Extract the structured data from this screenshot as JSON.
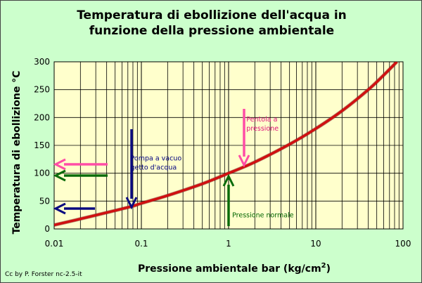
{
  "chart_data": {
    "type": "line",
    "title_lines": [
      "Temperatura di ebollizione dell'acqua in",
      "funzione della pressione ambientale"
    ],
    "xlabel_main": "Pressione ambientale bar (kg/cm",
    "xlabel_sup": "2",
    "xlabel_end": ")",
    "ylabel": "Temperatura di ebollizione °C",
    "x_scale": "log",
    "xlim": [
      0.01,
      100
    ],
    "ylim": [
      0,
      300
    ],
    "x_ticks": [
      0.01,
      0.1,
      1,
      10,
      100
    ],
    "x_tick_labels": [
      "0.01",
      "0.1",
      "1",
      "10",
      "100"
    ],
    "y_ticks": [
      0,
      50,
      100,
      150,
      200,
      250,
      300
    ],
    "y_tick_labels": [
      "0",
      "50",
      "100",
      "150",
      "200",
      "250",
      "300"
    ],
    "grid": true,
    "series": [
      {
        "color": "#d01010",
        "x": [
          0.01,
          0.02,
          0.05,
          0.08,
          0.1,
          0.2,
          0.5,
          1,
          2,
          5,
          10,
          20,
          40,
          60,
          85
        ],
        "y": [
          7,
          18,
          33,
          41,
          46,
          60,
          81,
          100,
          120,
          152,
          180,
          212,
          250,
          276,
          300
        ]
      }
    ],
    "annotations": [
      {
        "id": "pentola",
        "lines": [
          "Pentola a",
          "pressione"
        ],
        "color": "#e0147c",
        "x": 1.6,
        "y": 193
      },
      {
        "id": "pompa",
        "lines": [
          "Pompa a vacuo",
          "getto d'acqua"
        ],
        "color": "#000080",
        "x": 0.075,
        "y": 123
      },
      {
        "id": "normale",
        "lines": [
          "Pressione normale"
        ],
        "color": "#006400",
        "x": 1.1,
        "y": 21
      }
    ],
    "arrow_colors": {
      "pink": "#ff4da6",
      "green": "#0a6b0a",
      "blue": "#0a0a80"
    }
  },
  "credit": "Cc by P. Forster nc-2.5-it"
}
